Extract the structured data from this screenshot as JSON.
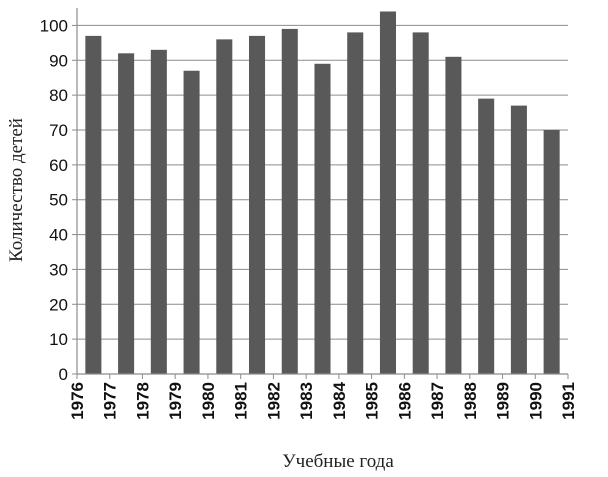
{
  "chart_data": {
    "type": "bar",
    "title": "",
    "xlabel": "Учебные года",
    "ylabel": "Количество детей",
    "tick_labels_x": [
      "1976",
      "1977",
      "1978",
      "1979",
      "1980",
      "1981",
      "1982",
      "1983",
      "1984",
      "1985",
      "1986",
      "1987",
      "1988",
      "1989",
      "1990",
      "1991"
    ],
    "categories": [
      "1976-1977",
      "1977-1978",
      "1978-1979",
      "1979-1980",
      "1980-1981",
      "1981-1982",
      "1982-1983",
      "1983-1984",
      "1984-1985",
      "1985-1986",
      "1986-1987",
      "1987-1988",
      "1988-1989",
      "1989-1990",
      "1990-1991"
    ],
    "values": [
      97,
      92,
      93,
      87,
      96,
      97,
      99,
      89,
      98,
      104,
      98,
      91,
      79,
      77,
      70
    ],
    "yticks": [
      0,
      10,
      20,
      30,
      40,
      50,
      60,
      70,
      80,
      90,
      100
    ],
    "ylim": [
      0,
      105
    ],
    "grid": true,
    "bar_color": "#595959",
    "grid_color": "#8c8c8c"
  }
}
